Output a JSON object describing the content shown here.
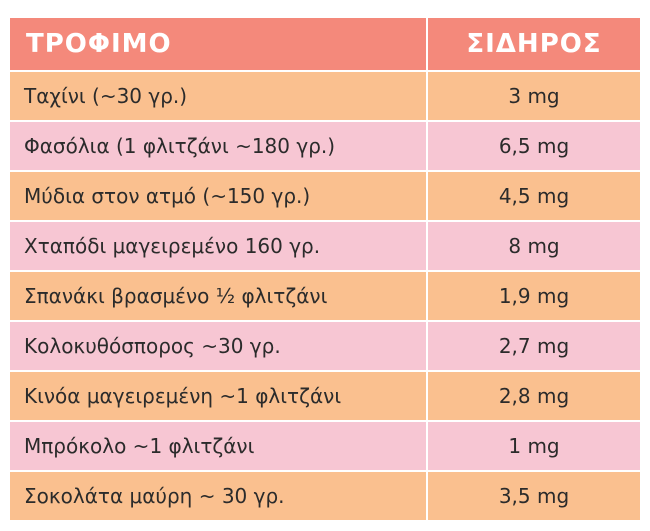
{
  "table": {
    "headers": {
      "food": "ΤΡΟΦΙΜΟ",
      "iron": "ΣΙΔΗΡΟΣ"
    },
    "rows": [
      {
        "food": "Ταχίνι (~30 γρ.)",
        "iron": "3 mg"
      },
      {
        "food": "Φασόλια (1 φλιτζάνι ~180 γρ.)",
        "iron": "6,5 mg"
      },
      {
        "food": "Μύδια στον ατμό (~150 γρ.)",
        "iron": "4,5 mg"
      },
      {
        "food": "Χταπόδι μαγειρεμένο 160 γρ.",
        "iron": "8 mg"
      },
      {
        "food": "Σπανάκι βρασμένο ½ φλιτζάνι",
        "iron": "1,9 mg"
      },
      {
        "food": "Κολοκυθόσπορος ~30 γρ.",
        "iron": "2,7 mg"
      },
      {
        "food": "Κινόα μαγειρεμένη ~1 φλιτζάνι",
        "iron": "2,8 mg"
      },
      {
        "food": "Μπρόκολο ~1 φλιτζάνι",
        "iron": "1 mg"
      },
      {
        "food": "Σοκολάτα μαύρη ~ 30 γρ.",
        "iron": "3,5 mg"
      }
    ]
  },
  "colors": {
    "header": "#f4897b",
    "row_orange": "#fac08f",
    "row_pink": "#f7c6d3"
  }
}
